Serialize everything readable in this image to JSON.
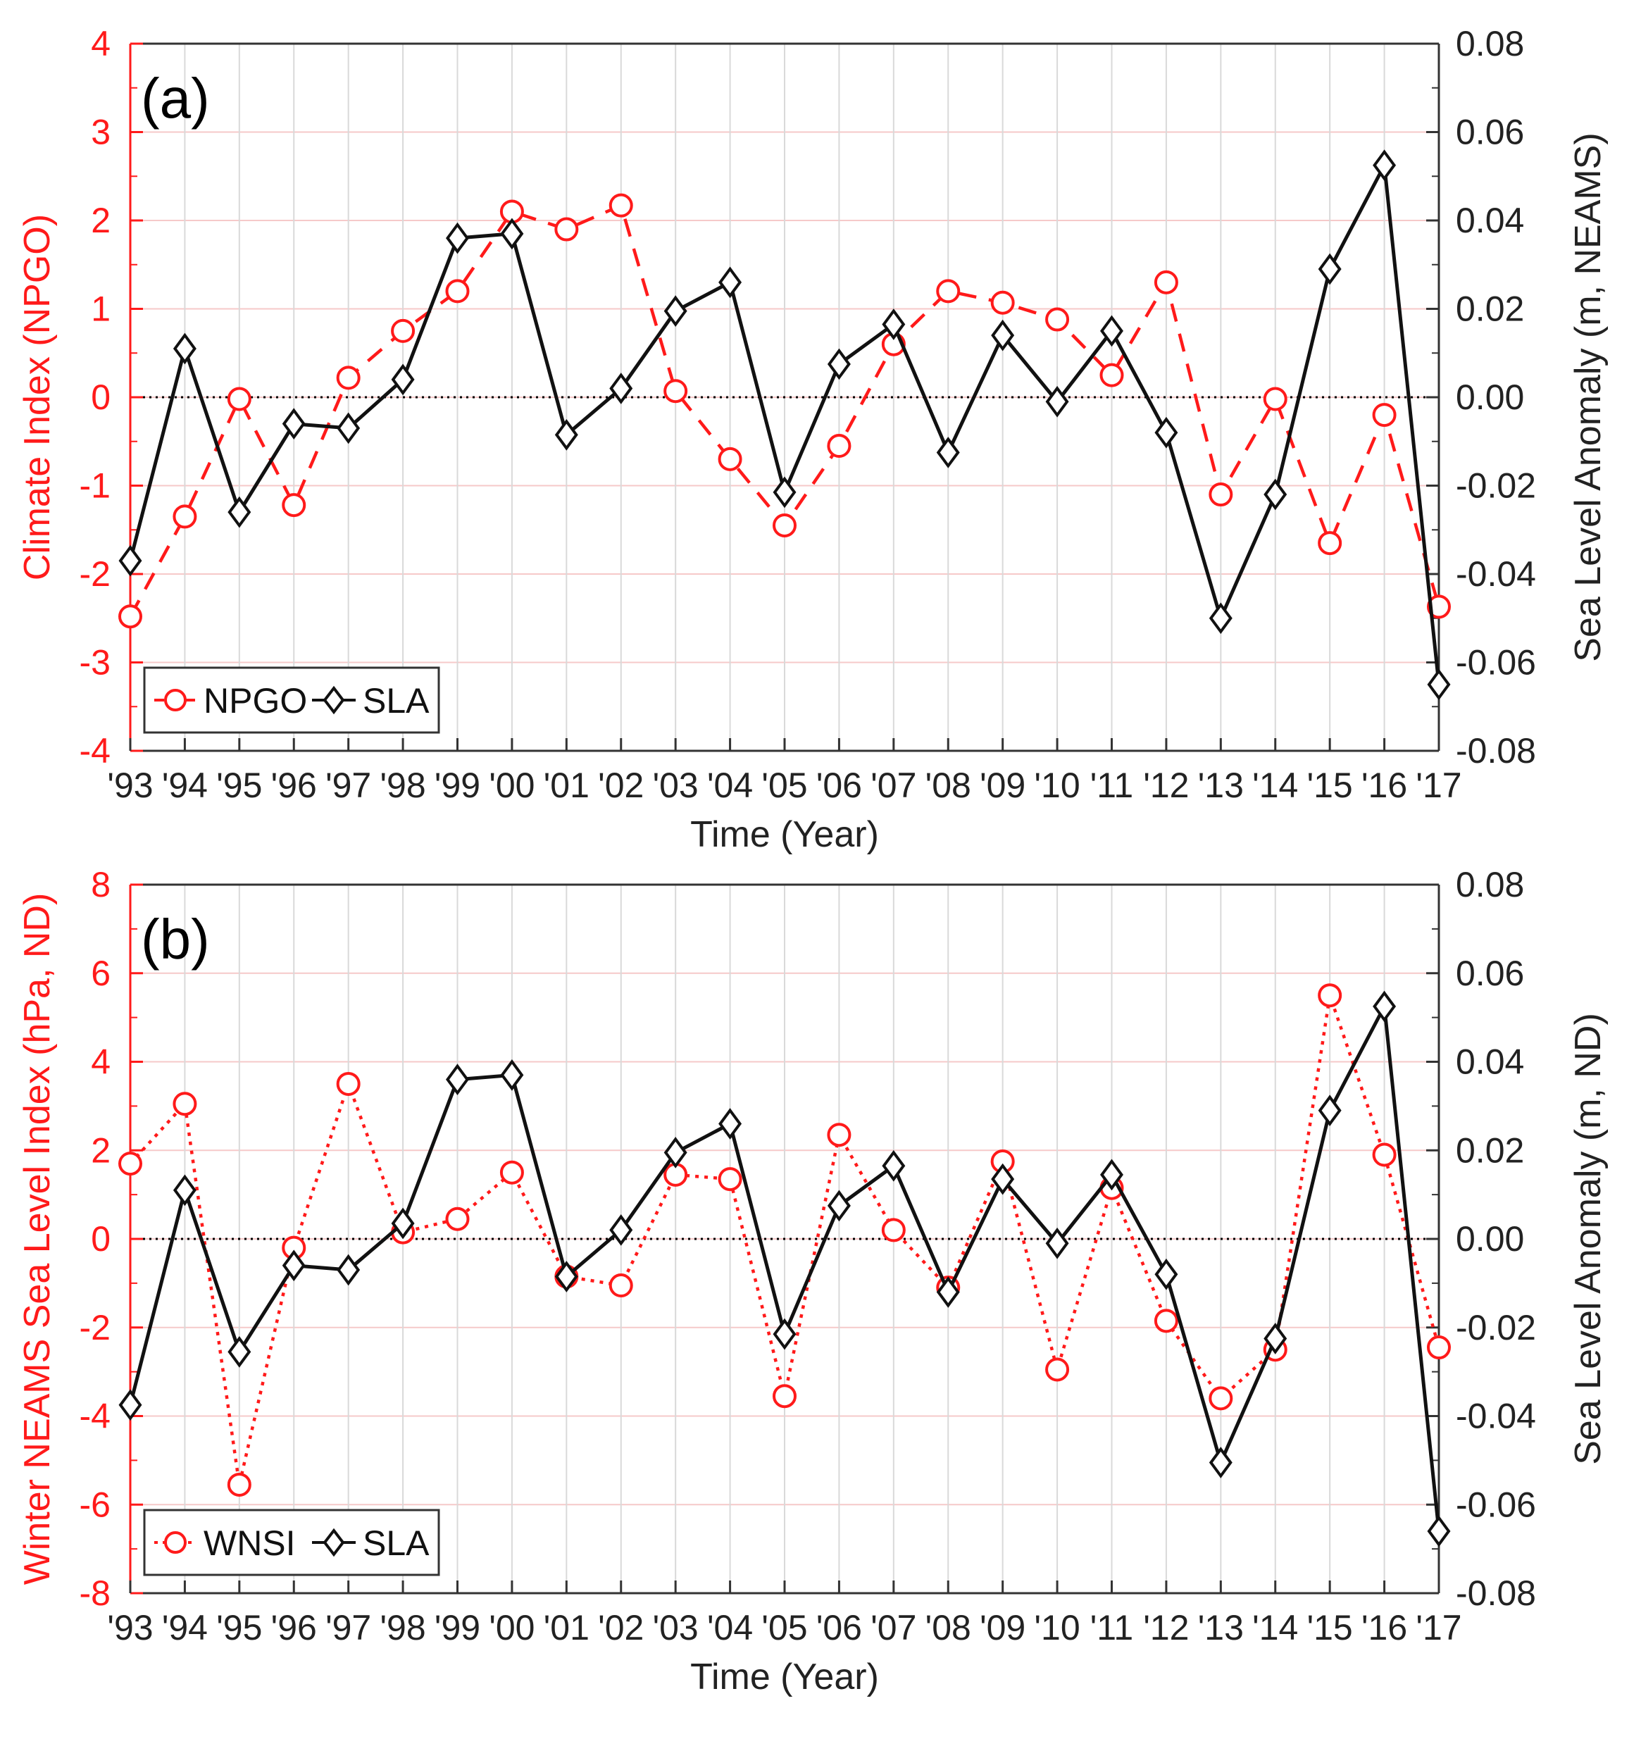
{
  "colors": {
    "red": "#ff1a1a",
    "black": "#111111",
    "grid": "#d9d9d9",
    "grid_red": "#f6c9c9"
  },
  "chart_data": [
    {
      "type": "line",
      "panel_label": "(a)",
      "categories": [
        "'93",
        "'94",
        "'95",
        "'96",
        "'97",
        "'98",
        "'99",
        "'00",
        "'01",
        "'02",
        "'03",
        "'04",
        "'05",
        "'06",
        "'07",
        "'08",
        "'09",
        "'10",
        "'11",
        "'12",
        "'13",
        "'14",
        "'15",
        "'16",
        "'17"
      ],
      "xlabel": "Time (Year)",
      "ylabel_left": "Climate Index (NPGO)",
      "ylabel_right": "Sea Level Anomaly (m, NEAMS)",
      "ylim_left": [
        -4,
        4
      ],
      "yticks_left": [
        "4",
        "3",
        "2",
        "1",
        "0",
        "-1",
        "-2",
        "-3",
        "-4"
      ],
      "ylim_right": [
        -0.08,
        0.08
      ],
      "yticks_right": [
        "0.08",
        "0.06",
        "0.04",
        "0.02",
        "0.00",
        "-0.02",
        "-0.04",
        "-0.06",
        "-0.08"
      ],
      "legend_position": "bottom-left",
      "series": [
        {
          "name": "NPGO",
          "axis": "left",
          "style": "dashed",
          "marker": "circle",
          "color": "#ff1a1a",
          "values": [
            -2.48,
            -1.35,
            -0.02,
            -1.22,
            0.22,
            0.75,
            1.2,
            2.1,
            1.9,
            2.17,
            0.07,
            -0.7,
            -1.45,
            -0.55,
            0.6,
            1.2,
            1.07,
            0.88,
            0.25,
            1.3,
            -1.1,
            -0.02,
            -1.65,
            -0.2,
            -2.37
          ]
        },
        {
          "name": "SLA",
          "axis": "right",
          "style": "solid",
          "marker": "diamond",
          "color": "#111111",
          "values": [
            -0.037,
            0.011,
            -0.026,
            -0.006,
            -0.007,
            0.004,
            0.036,
            0.037,
            -0.0085,
            0.002,
            0.0195,
            0.026,
            -0.0215,
            0.0075,
            0.0165,
            -0.0125,
            0.014,
            -0.001,
            0.015,
            -0.008,
            -0.05,
            -0.022,
            0.029,
            0.0525,
            -0.065
          ]
        }
      ]
    },
    {
      "type": "line",
      "panel_label": "(b)",
      "categories": [
        "'93",
        "'94",
        "'95",
        "'96",
        "'97",
        "'98",
        "'99",
        "'00",
        "'01",
        "'02",
        "'03",
        "'04",
        "'05",
        "'06",
        "'07",
        "'08",
        "'09",
        "'10",
        "'11",
        "'12",
        "'13",
        "'14",
        "'15",
        "'16",
        "'17"
      ],
      "xlabel": "Time (Year)",
      "ylabel_left": "Winter NEAMS Sea Level Index (hPa, ND)",
      "ylabel_right": "Sea Level Anomaly (m, ND)",
      "ylim_left": [
        -8,
        8
      ],
      "yticks_left": [
        "8",
        "6",
        "4",
        "2",
        "0",
        "-2",
        "-4",
        "-6",
        "-8"
      ],
      "ylim_right": [
        -0.08,
        0.08
      ],
      "yticks_right": [
        "0.08",
        "0.06",
        "0.04",
        "0.02",
        "0.00",
        "-0.02",
        "-0.04",
        "-0.06",
        "-0.08"
      ],
      "legend_position": "bottom-left",
      "series": [
        {
          "name": "WNSI",
          "axis": "left",
          "style": "dotted",
          "marker": "circle",
          "color": "#ff1a1a",
          "values": [
            1.7,
            3.05,
            -5.55,
            -0.2,
            3.5,
            0.15,
            0.45,
            1.5,
            -0.85,
            -1.05,
            1.45,
            1.35,
            -3.55,
            2.35,
            0.2,
            -1.1,
            1.75,
            -2.95,
            1.15,
            -1.85,
            -3.6,
            -2.5,
            5.5,
            1.9,
            -2.45
          ]
        },
        {
          "name": "SLA",
          "axis": "right",
          "style": "solid",
          "marker": "diamond",
          "color": "#111111",
          "values": [
            -0.0375,
            0.011,
            -0.0255,
            -0.006,
            -0.007,
            0.0035,
            0.036,
            0.037,
            -0.0085,
            0.002,
            0.0195,
            0.026,
            -0.0215,
            0.0075,
            0.0165,
            -0.012,
            0.0135,
            -0.001,
            0.0145,
            -0.008,
            -0.0505,
            -0.0225,
            0.029,
            0.0525,
            -0.066
          ]
        }
      ]
    }
  ]
}
